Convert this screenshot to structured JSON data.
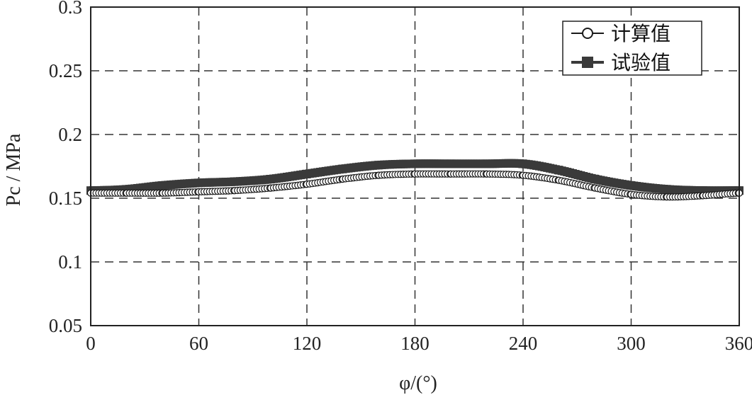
{
  "chart_data": {
    "type": "line",
    "xlabel": "φ/(°)",
    "ylabel": "Pc / MPa",
    "xlim": [
      0,
      360
    ],
    "ylim": [
      0.05,
      0.3
    ],
    "x_ticks": [
      "0",
      "60",
      "120",
      "180",
      "240",
      "300",
      "360"
    ],
    "y_ticks": [
      "0.05",
      "0.1",
      "0.15",
      "0.2",
      "0.25",
      "0.3"
    ],
    "grid": true,
    "legend_position": "top-right",
    "x": [
      0,
      20,
      40,
      60,
      80,
      100,
      120,
      140,
      160,
      180,
      200,
      220,
      240,
      260,
      280,
      300,
      320,
      340,
      360
    ],
    "series": [
      {
        "name": "计算值",
        "marker": "open-circle",
        "color": "#1a1a1a",
        "values": [
          0.154,
          0.154,
          0.154,
          0.155,
          0.156,
          0.158,
          0.161,
          0.165,
          0.168,
          0.169,
          0.169,
          0.169,
          0.168,
          0.164,
          0.158,
          0.153,
          0.151,
          0.152,
          0.154
        ]
      },
      {
        "name": "试验值",
        "marker": "filled-square",
        "color": "#3a3a3a",
        "values": [
          0.156,
          0.157,
          0.16,
          0.162,
          0.163,
          0.165,
          0.169,
          0.173,
          0.176,
          0.177,
          0.177,
          0.177,
          0.177,
          0.172,
          0.165,
          0.16,
          0.157,
          0.156,
          0.156
        ]
      }
    ]
  }
}
